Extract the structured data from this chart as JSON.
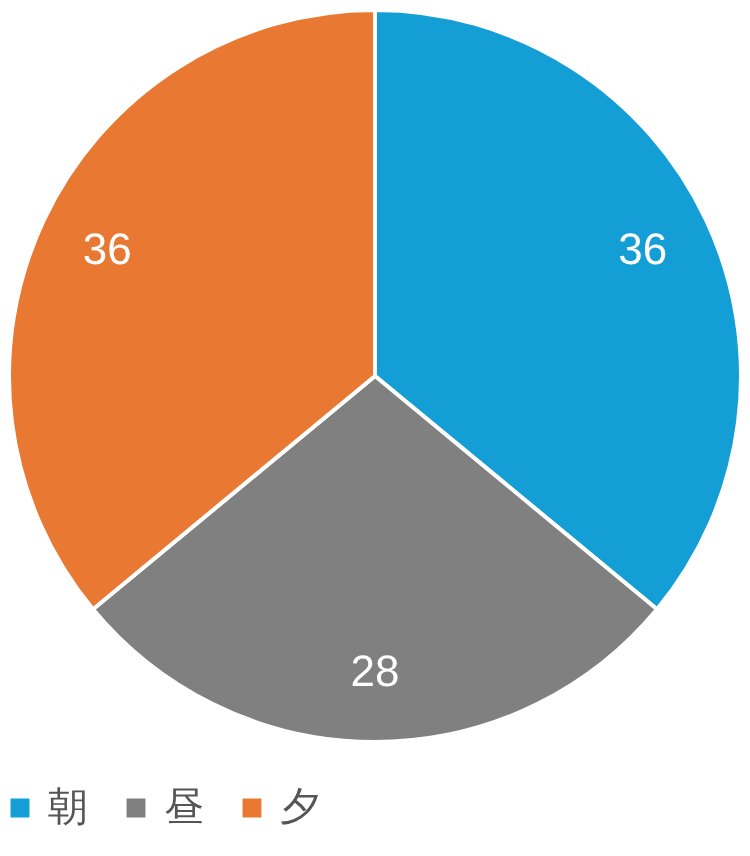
{
  "chart_data": {
    "type": "pie",
    "categories": [
      "朝",
      "昼",
      "夕"
    ],
    "values": [
      36,
      28,
      36
    ],
    "colors": [
      "#139fd6",
      "#808080",
      "#e97832"
    ],
    "data_labels": true,
    "legend": "bottom"
  }
}
